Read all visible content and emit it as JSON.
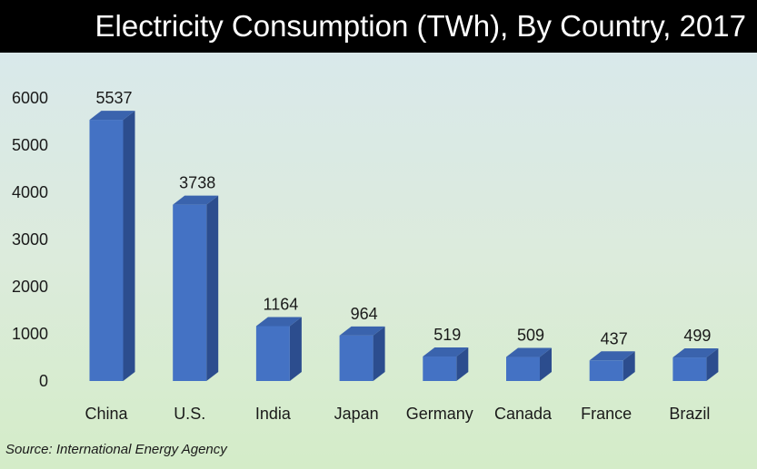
{
  "chart_data": {
    "type": "bar",
    "title": "Electricity Consumption (TWh), By Country, 2017",
    "categories": [
      "China",
      "U.S.",
      "India",
      "Japan",
      "Germany",
      "Canada",
      "France",
      "Brazil"
    ],
    "values": [
      5537,
      3738,
      1164,
      964,
      519,
      509,
      437,
      499
    ],
    "xlabel": "",
    "ylabel": "",
    "ylim": [
      0,
      6000
    ],
    "yticks": [
      0,
      1000,
      2000,
      3000,
      4000,
      5000,
      6000
    ],
    "grid": false,
    "legend": "none",
    "style": "3d-column",
    "colors": {
      "front": "#4472c4",
      "top": "#3a63ad",
      "side": "#2c4d8e"
    }
  },
  "source": "Source: International Energy Agency"
}
